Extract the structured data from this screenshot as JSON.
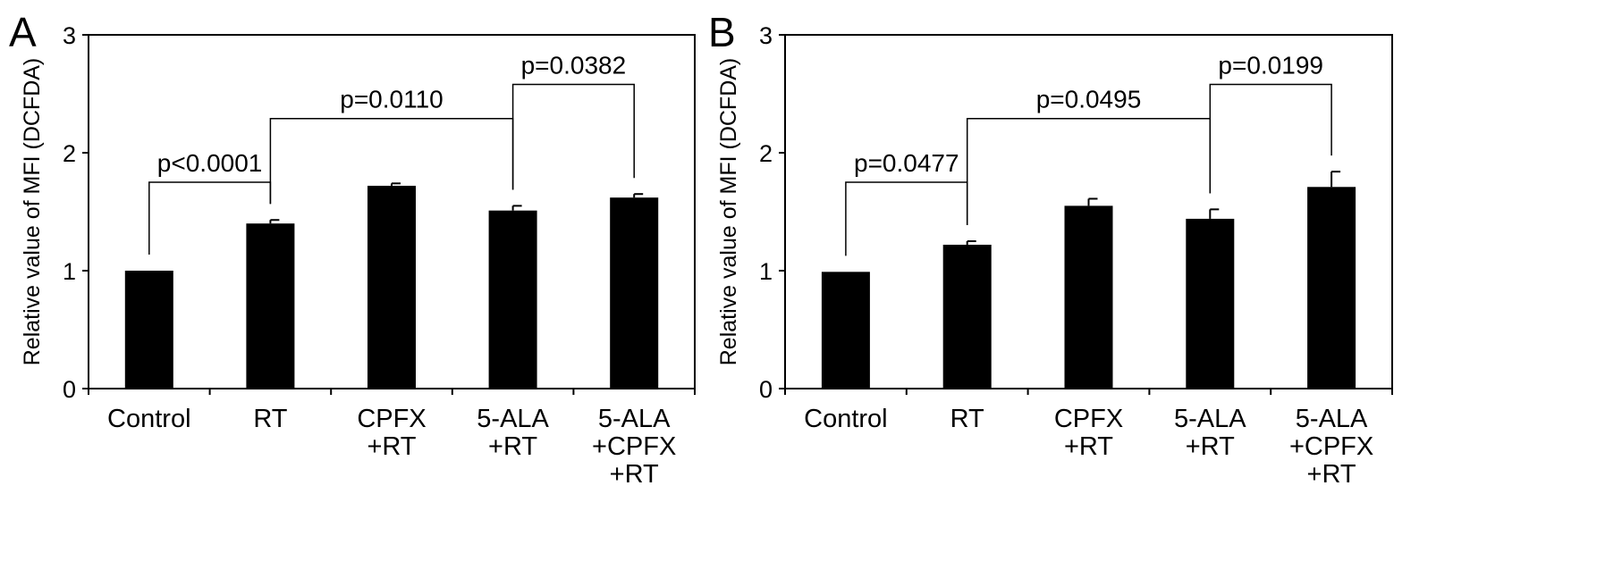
{
  "chart_data": [
    {
      "type": "bar",
      "panel": "A",
      "ylabel": "Relative value of MFI (DCFDA)",
      "ylim": [
        0,
        3
      ],
      "yticks": [
        "0",
        "1",
        "2",
        "3"
      ],
      "categories": [
        [
          "Control"
        ],
        [
          "RT"
        ],
        [
          "CPFX",
          "+RT"
        ],
        [
          "5-ALA",
          "+RT"
        ],
        [
          "5-ALA",
          "+CPFX",
          "+RT"
        ]
      ],
      "values": [
        1.0,
        1.4,
        1.72,
        1.51,
        1.62
      ],
      "errors": [
        0.0,
        0.03,
        0.02,
        0.04,
        0.03
      ],
      "comparisons": [
        {
          "from": 0,
          "to": 1,
          "label": "p<0.0001",
          "y": 1.75
        },
        {
          "from": 1,
          "to": 3,
          "label": "p=0.0110",
          "y": 2.29
        },
        {
          "from": 3,
          "to": 4,
          "label": "p=0.0382",
          "y": 2.58
        }
      ]
    },
    {
      "type": "bar",
      "panel": "B",
      "ylabel": "Relative value of MFI (DCFDA)",
      "ylim": [
        0,
        3
      ],
      "yticks": [
        "0",
        "1",
        "2",
        "3"
      ],
      "categories": [
        [
          "Control"
        ],
        [
          "RT"
        ],
        [
          "CPFX",
          "+RT"
        ],
        [
          "5-ALA",
          "+RT"
        ],
        [
          "5-ALA",
          "+CPFX",
          "+RT"
        ]
      ],
      "values": [
        0.99,
        1.22,
        1.55,
        1.44,
        1.71
      ],
      "errors": [
        0.0,
        0.03,
        0.06,
        0.08,
        0.13
      ],
      "comparisons": [
        {
          "from": 0,
          "to": 1,
          "label": "p=0.0477",
          "y": 1.75
        },
        {
          "from": 1,
          "to": 3,
          "label": "p=0.0495",
          "y": 2.29
        },
        {
          "from": 3,
          "to": 4,
          "label": "p=0.0199",
          "y": 2.58
        }
      ]
    }
  ]
}
